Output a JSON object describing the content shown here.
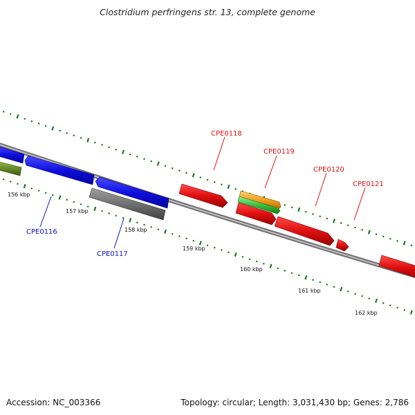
{
  "title": "Clostridium perfringens str. 13, complete genome",
  "footer": {
    "accession": "Accession: NC_003366",
    "summary": "Topology: circular; Length: 3,031,430 bp; Genes: 2,786"
  },
  "colors": {
    "backbone": "#8c8c8c",
    "ruler_ticks": "#1a7a1a",
    "forward_strand": "#e01010",
    "reverse_strand": "#1010e0",
    "pseudo_gray": "#707070",
    "olive": "#6a8a2a",
    "orange": "#f0a020",
    "green": "#40c040",
    "label_forward": "#e01010",
    "label_reverse": "#1010c0"
  },
  "ruler_labels": [
    {
      "text": "156 kbp",
      "kbp": 156
    },
    {
      "text": "157 kbp",
      "kbp": 157
    },
    {
      "text": "158 kbp",
      "kbp": 158
    },
    {
      "text": "159 kbp",
      "kbp": 159
    },
    {
      "text": "160 kbp",
      "kbp": 160
    },
    {
      "text": "161 kbp",
      "kbp": 161
    },
    {
      "text": "162 kbp",
      "kbp": 162
    }
  ],
  "gene_labels": [
    {
      "text": "CPE0116",
      "strand": "reverse"
    },
    {
      "text": "CPE0117",
      "strand": "reverse"
    },
    {
      "text": "CPE0118",
      "strand": "forward"
    },
    {
      "text": "CPE0119",
      "strand": "forward"
    },
    {
      "text": "CPE0120",
      "strand": "forward"
    },
    {
      "text": "CPE0121",
      "strand": "forward"
    }
  ]
}
